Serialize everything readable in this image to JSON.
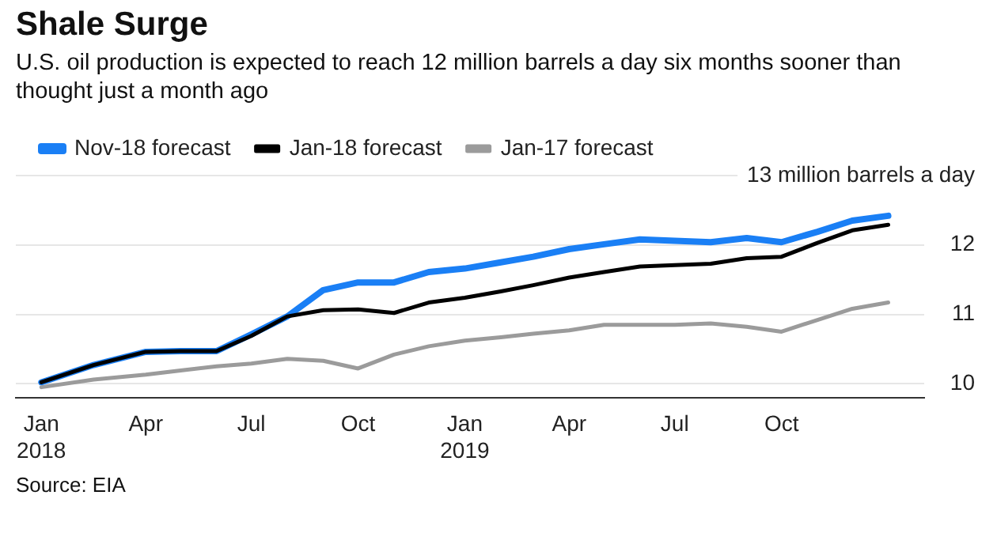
{
  "chart_data": {
    "type": "line",
    "title": "Shale Surge",
    "subtitle": "U.S. oil production is expected to reach 12 million barrels a day six months sooner than thought just a month ago",
    "x": [
      "2018-01",
      "2018-02-15",
      "2018-04",
      "2018-05",
      "2018-06",
      "2018-07",
      "2018-08",
      "2018-09",
      "2018-10",
      "2018-11",
      "2018-12",
      "2019-01",
      "2019-02",
      "2019-03",
      "2019-04",
      "2019-05",
      "2019-06",
      "2019-07",
      "2019-08",
      "2019-09",
      "2019-10",
      "2019-11",
      "2019-12",
      "2020-01"
    ],
    "series": [
      {
        "name": "Nov-18 forecast",
        "color": "#1a7ff5",
        "values": [
          10.02,
          10.27,
          10.46,
          10.47,
          10.47,
          10.71,
          10.97,
          11.35,
          11.46,
          11.46,
          11.61,
          11.66,
          11.75,
          11.83,
          11.94,
          12.01,
          12.08,
          12.06,
          12.04,
          12.1,
          12.04,
          12.19,
          12.35,
          12.42
        ]
      },
      {
        "name": "Jan-18 forecast",
        "color": "#000000",
        "values": [
          10.02,
          10.27,
          10.46,
          10.47,
          10.47,
          10.69,
          10.97,
          11.06,
          11.07,
          11.02,
          11.17,
          11.24,
          11.33,
          11.42,
          11.53,
          11.61,
          11.69,
          11.71,
          11.73,
          11.81,
          11.83,
          12.03,
          12.21,
          12.29
        ]
      },
      {
        "name": "Jan-17 forecast",
        "color": "#9b9b9b",
        "values": [
          9.95,
          10.06,
          10.13,
          10.19,
          10.25,
          10.29,
          10.36,
          10.33,
          10.22,
          10.42,
          10.54,
          10.62,
          10.67,
          10.72,
          10.77,
          10.85,
          10.85,
          10.85,
          10.87,
          10.82,
          10.75,
          10.92,
          11.08,
          11.17
        ]
      }
    ],
    "xlim": [
      "2017-12-10",
      "2020-02-01"
    ],
    "xticks": [
      {
        "value": "2018-01",
        "label": "Jan\n2018"
      },
      {
        "value": "2018-04",
        "label": "Apr"
      },
      {
        "value": "2018-07",
        "label": "Jul"
      },
      {
        "value": "2018-10",
        "label": "Oct"
      },
      {
        "value": "2019-01",
        "label": "Jan\n2019"
      },
      {
        "value": "2019-04",
        "label": "Apr"
      },
      {
        "value": "2019-07",
        "label": "Jul"
      },
      {
        "value": "2019-10",
        "label": "Oct"
      }
    ],
    "ylim": [
      9.8,
      13
    ],
    "yticks": [
      10,
      11,
      12,
      {
        "value": 13,
        "label": "13 million barrels a day"
      }
    ],
    "grid": "y",
    "legend": "top left",
    "marker": "none",
    "line_style": "solid",
    "annotations": [
      "Source: EIA"
    ]
  }
}
